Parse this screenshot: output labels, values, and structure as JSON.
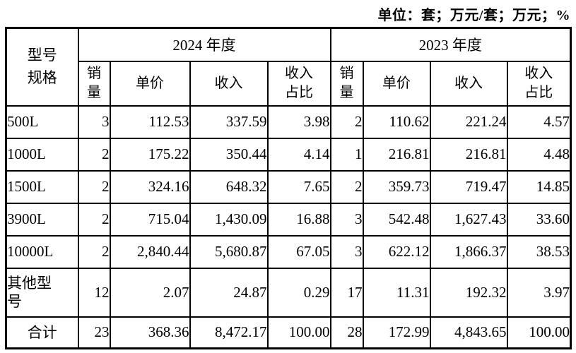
{
  "unit_note": "单位：套；万元/套；万元；%",
  "table": {
    "corner_header_lines": [
      "型号",
      "规格"
    ],
    "groups": [
      {
        "year_label": "2024 年度",
        "subheaders": [
          [
            "销",
            "量"
          ],
          "单价",
          "收入",
          [
            "收入",
            "占比"
          ]
        ]
      },
      {
        "year_label": "2023 年度",
        "subheaders": [
          [
            "销",
            "量"
          ],
          "单价",
          "收入",
          [
            "收入",
            "占比"
          ]
        ]
      }
    ],
    "rows": [
      {
        "label": "500L",
        "values": [
          "3",
          "112.53",
          "337.59",
          "3.98",
          "2",
          "110.62",
          "221.24",
          "4.57"
        ]
      },
      {
        "label": "1000L",
        "values": [
          "2",
          "175.22",
          "350.44",
          "4.14",
          "1",
          "216.81",
          "216.81",
          "4.48"
        ]
      },
      {
        "label": "1500L",
        "values": [
          "2",
          "324.16",
          "648.32",
          "7.65",
          "2",
          "359.73",
          "719.47",
          "14.85"
        ]
      },
      {
        "label": "3900L",
        "values": [
          "2",
          "715.04",
          "1,430.09",
          "16.88",
          "3",
          "542.48",
          "1,627.43",
          "33.60"
        ]
      },
      {
        "label": "10000L",
        "values": [
          "2",
          "2,840.44",
          "5,680.87",
          "67.05",
          "3",
          "622.12",
          "1,866.37",
          "38.53"
        ]
      },
      {
        "label_lines": [
          "其他型",
          "号"
        ],
        "values": [
          "12",
          "2.07",
          "24.87",
          "0.29",
          "17",
          "11.31",
          "192.32",
          "3.97"
        ]
      },
      {
        "label": "合计",
        "total": true,
        "values": [
          "23",
          "368.36",
          "8,472.17",
          "100.00",
          "28",
          "172.99",
          "4,843.65",
          "100.00"
        ]
      }
    ]
  }
}
